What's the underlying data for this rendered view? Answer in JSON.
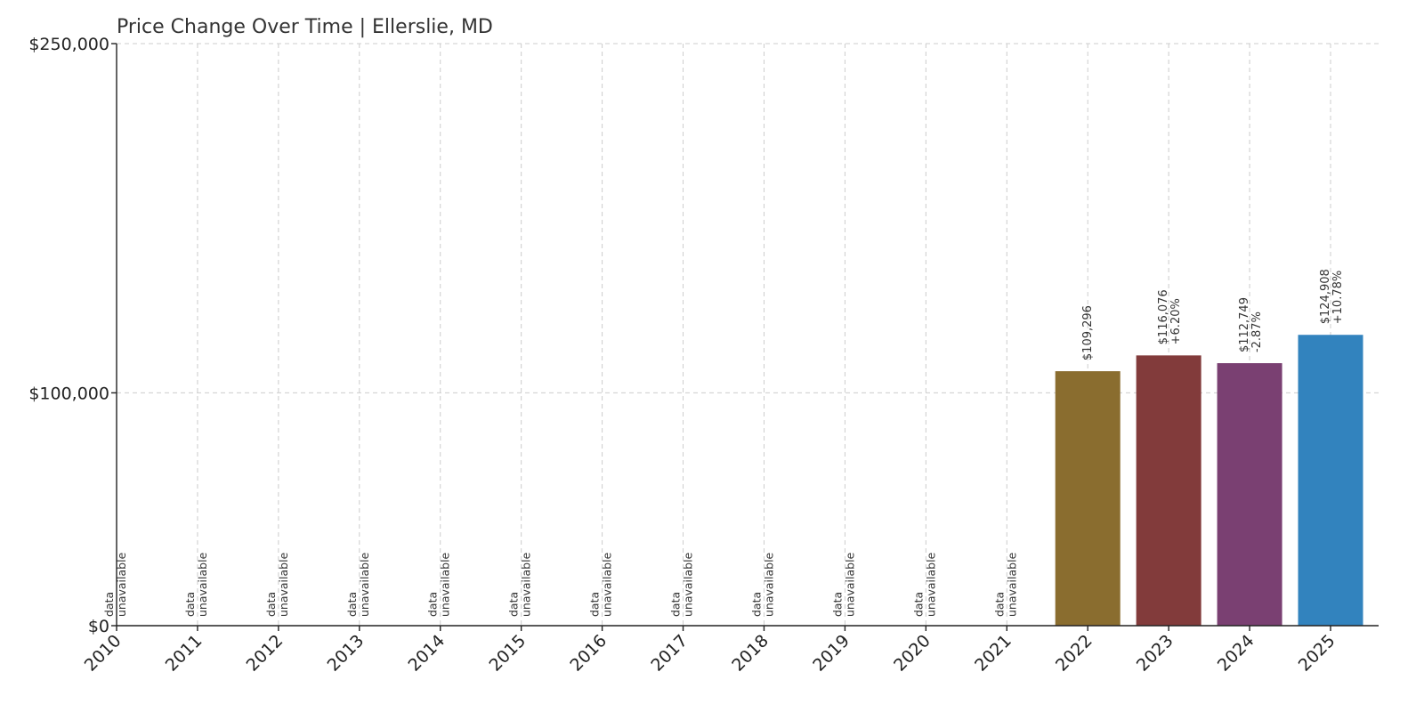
{
  "chart_data": {
    "type": "bar",
    "title": "Price Change Over Time | Ellerslie, MD",
    "xlabel": "",
    "ylabel": "",
    "categories": [
      "2010",
      "2011",
      "2012",
      "2013",
      "2014",
      "2015",
      "2016",
      "2017",
      "2018",
      "2019",
      "2020",
      "2021",
      "2022",
      "2023",
      "2024",
      "2025"
    ],
    "values": [
      null,
      null,
      null,
      null,
      null,
      null,
      null,
      null,
      null,
      null,
      null,
      null,
      109296,
      116076,
      112749,
      124908
    ],
    "value_labels": [
      "",
      "",
      "",
      "",
      "",
      "",
      "",
      "",
      "",
      "",
      "",
      "",
      "$109,296",
      "$116,076",
      "$112,749",
      "$124,908"
    ],
    "change_labels": [
      "",
      "",
      "",
      "",
      "",
      "",
      "",
      "",
      "",
      "",
      "",
      "",
      "",
      "+6.20%",
      "-2.87%",
      "+10.78%"
    ],
    "unavailable_label": [
      "data",
      "unavailable"
    ],
    "colors": [
      "",
      "",
      "",
      "",
      "",
      "",
      "",
      "",
      "",
      "",
      "",
      "",
      "#8a6d2f",
      "#823b3b",
      "#7a4072",
      "#3283be"
    ],
    "yticks": [
      0,
      100000,
      250000
    ],
    "ytick_labels": [
      "$0",
      "$100,000",
      "$250,000"
    ],
    "ylim": [
      0,
      250000
    ],
    "grid": true
  }
}
